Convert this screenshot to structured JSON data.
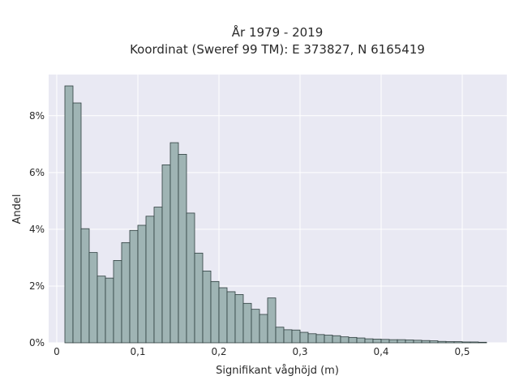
{
  "chart_data": {
    "type": "bar",
    "title_lines": [
      "År 1979 - 2019",
      "Koordinat (Sweref 99 TM): E 373827, N 6165419"
    ],
    "xlabel": "Signifikant våghöjd (m)",
    "ylabel": "Andel",
    "x_range": [
      -0.01,
      0.555
    ],
    "y_range": [
      0,
      0.0945
    ],
    "x_ticks": [
      0,
      0.1,
      0.2,
      0.3,
      0.4,
      0.5
    ],
    "x_tick_labels": [
      "0",
      "0,1",
      "0,2",
      "0,3",
      "0,4",
      "0,5"
    ],
    "y_ticks": [
      0,
      0.02,
      0.04,
      0.06,
      0.08
    ],
    "y_tick_labels": [
      "0%",
      "2%",
      "4%",
      "6%",
      "8%"
    ],
    "grid": true,
    "bin_start": 0.01,
    "bin_width": 0.01,
    "values": [
      0.0905,
      0.0845,
      0.0402,
      0.0318,
      0.0235,
      0.0228,
      0.029,
      0.0353,
      0.0396,
      0.0414,
      0.0446,
      0.0478,
      0.0627,
      0.0705,
      0.0664,
      0.0457,
      0.0316,
      0.0253,
      0.0216,
      0.0194,
      0.018,
      0.017,
      0.0139,
      0.0118,
      0.01,
      0.0158,
      0.0055,
      0.0046,
      0.0045,
      0.0037,
      0.0032,
      0.0029,
      0.0027,
      0.0025,
      0.0021,
      0.0019,
      0.0017,
      0.0014,
      0.0013,
      0.0012,
      0.0011,
      0.0011,
      0.001,
      0.0009,
      0.0008,
      0.0007,
      0.0005,
      0.0004,
      0.0004,
      0.0003,
      0.0003,
      0.0002
    ]
  }
}
